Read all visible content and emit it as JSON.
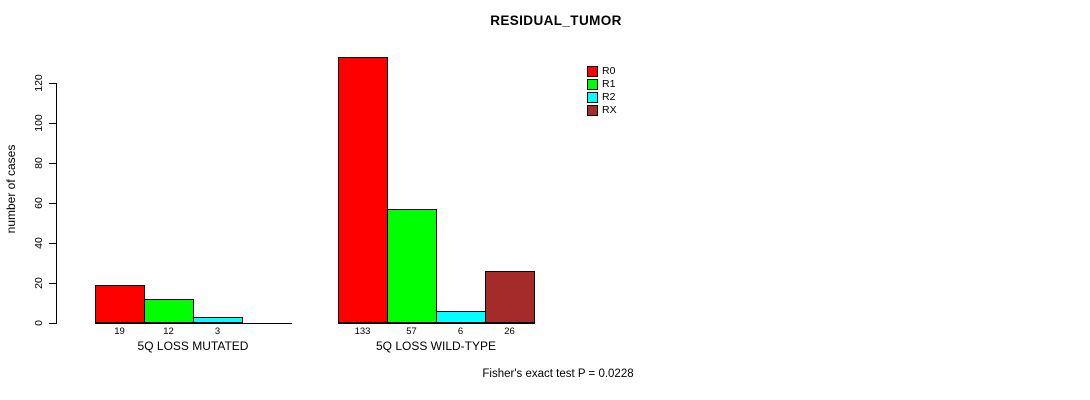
{
  "chart_data": {
    "type": "bar",
    "title": "RESIDUAL_TUMOR",
    "ylabel": "number of cases",
    "xlabel": "",
    "ylim": [
      0,
      120
    ],
    "yticks": [
      0,
      20,
      40,
      60,
      80,
      100,
      120
    ],
    "grid": false,
    "legend_position": "upper-right",
    "categories": [
      "5Q LOSS MUTATED",
      "5Q LOSS WILD-TYPE"
    ],
    "series": [
      {
        "name": "R0",
        "color": "#ff0000",
        "values": [
          19,
          133
        ]
      },
      {
        "name": "R1",
        "color": "#00ff00",
        "values": [
          12,
          57
        ]
      },
      {
        "name": "R2",
        "color": "#00ffff",
        "values": [
          3,
          6
        ]
      },
      {
        "name": "RX",
        "color": "#a52a2a",
        "values": [
          null,
          26
        ]
      }
    ],
    "annotation": "Fisher's exact test P = 0.0228"
  }
}
